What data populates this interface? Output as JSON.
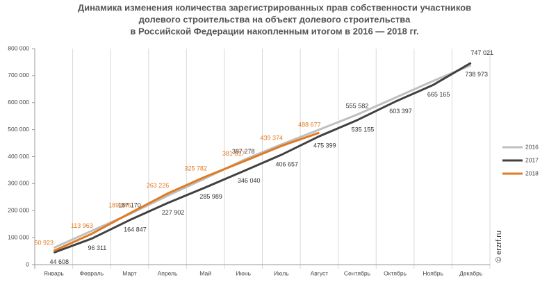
{
  "chart_data": {
    "type": "line",
    "title": [
      "Динамика изменения количества зарегистрированных прав собственности участников",
      "долевого строительства на объект долевого строительства",
      "в Российской Федерации накопленным итогом в 2016 — 2018 гг."
    ],
    "categories": [
      "Январь",
      "Февраль",
      "Март",
      "Апрель",
      "Май",
      "Июнь",
      "Июль",
      "Август",
      "Сентябрь",
      "Октябрь",
      "Ноябрь",
      "Декабрь"
    ],
    "ylim": [
      0,
      800000
    ],
    "yticks": [
      0,
      {
        "value": 100000,
        "label": "100 000"
      },
      {
        "value": 200000,
        "label": "200 000"
      },
      {
        "value": 300000,
        "label": "300 000"
      },
      {
        "value": 400000,
        "label": "400 000"
      },
      {
        "value": 500000,
        "label": "500 000"
      },
      {
        "value": 600000,
        "label": "600 000"
      },
      {
        "value": 700000,
        "label": "700 000"
      },
      {
        "value": 800000,
        "label": "800 000"
      }
    ],
    "legend": "right",
    "watermark": "© erzrf.ru",
    "series": [
      {
        "name": "2016",
        "color": "#bfbfbf",
        "values": [
          62000,
          125000,
          187170,
          255000,
          320000,
          387278,
          445000,
          500000,
          555582,
          618000,
          680000,
          738973
        ],
        "value_labels": [
          null,
          null,
          "187 170",
          null,
          null,
          "387 278",
          null,
          null,
          "555 582",
          null,
          null,
          "738 973"
        ]
      },
      {
        "name": "2017",
        "color": "#404040",
        "values": [
          44608,
          96311,
          164847,
          227902,
          285989,
          346040,
          406657,
          475399,
          535155,
          603397,
          665165,
          747021
        ],
        "value_labels": [
          "44 608",
          "96 311",
          "164 847",
          "227 902",
          "285 989",
          "346 040",
          "406 657",
          "475 399",
          "535 155",
          "603 397",
          "665 165",
          "747 021"
        ]
      },
      {
        "name": "2018",
        "color": "#e07b22",
        "values": [
          50923,
          113963,
          189946,
          263226,
          325782,
          381817,
          439374,
          488677,
          null,
          null,
          null,
          null
        ],
        "value_labels": [
          "50 923",
          "113 963",
          "189 946",
          "263 226",
          "325 782",
          "381 817",
          "439 374",
          "488 677",
          null,
          null,
          null,
          null
        ]
      }
    ]
  }
}
